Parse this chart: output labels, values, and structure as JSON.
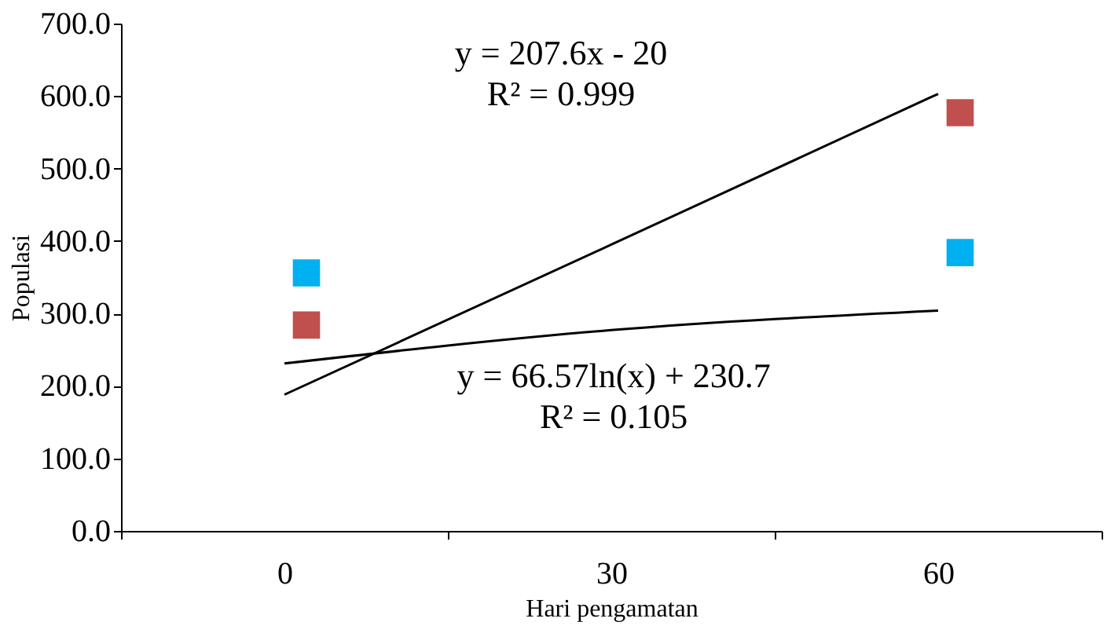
{
  "chart_data": {
    "type": "scatter",
    "xlabel": "Hari  pengamatan",
    "ylabel": "Populasi",
    "categories": [
      "0",
      "30",
      "60"
    ],
    "ylim": [
      0,
      700
    ],
    "yticks": [
      {
        "value": 0,
        "label": "0.0"
      },
      {
        "value": 100,
        "label": "100.0"
      },
      {
        "value": 200,
        "label": "200.0"
      },
      {
        "value": 300,
        "label": "300.0"
      },
      {
        "value": 400,
        "label": "400.0"
      },
      {
        "value": 500,
        "label": "500.0"
      },
      {
        "value": 600,
        "label": "600.0"
      },
      {
        "value": 700,
        "label": "700.0"
      }
    ],
    "marker": "square",
    "series": [
      {
        "color": "#00b0f0",
        "x": [
          "0",
          "60"
        ],
        "values": [
          356,
          384
        ]
      },
      {
        "color": "#c0504d",
        "x": [
          "0",
          "60"
        ],
        "values": [
          284,
          577
        ]
      },
      {
        "type": "line",
        "color": "#000000",
        "marker": "none",
        "x": [
          "0",
          "30",
          "60"
        ],
        "values": [
          188,
          395,
          603
        ]
      },
      {
        "type": "line",
        "color": "#000000",
        "marker": "none",
        "x": [
          "0",
          "30",
          "60"
        ],
        "values": [
          231,
          277,
          304
        ]
      }
    ],
    "annotations": [
      "y = 207.6x - 20\nR² = 0.999",
      "y = 66.57ln(x) + 230.7\nR² = 0.105"
    ]
  }
}
